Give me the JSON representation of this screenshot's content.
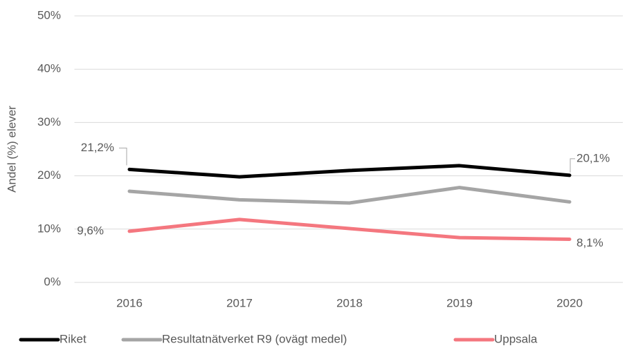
{
  "chart_data": {
    "type": "line",
    "y_label": "Andel (%) elever",
    "categories": [
      "2016",
      "2017",
      "2018",
      "2019",
      "2020"
    ],
    "series": [
      {
        "name": "Riket",
        "color": "#000000",
        "values": [
          21.2,
          19.8,
          21.0,
          21.9,
          20.1
        ],
        "value_labels": [
          "21,2%",
          null,
          null,
          null,
          "20,1%"
        ]
      },
      {
        "name": "Resultatnätverket R9 (ovägt medel)",
        "color": "#a5a5a5",
        "values": [
          17.1,
          15.5,
          14.9,
          17.8,
          15.1
        ]
      },
      {
        "name": "Uppsala",
        "color": "#f4777f",
        "values": [
          9.6,
          11.8,
          10.1,
          8.4,
          8.1
        ],
        "value_labels": [
          "9,6%",
          null,
          null,
          null,
          "8,1%"
        ]
      }
    ],
    "ylim": [
      0,
      50
    ],
    "yticks": [
      {
        "value": 0,
        "label": "0%"
      },
      {
        "value": 10,
        "label": "10%"
      },
      {
        "value": 20,
        "label": "20%"
      },
      {
        "value": 30,
        "label": "30%"
      },
      {
        "value": 40,
        "label": "40%"
      },
      {
        "value": 50,
        "label": "50%"
      }
    ],
    "grid": true,
    "legend": "bottom"
  }
}
